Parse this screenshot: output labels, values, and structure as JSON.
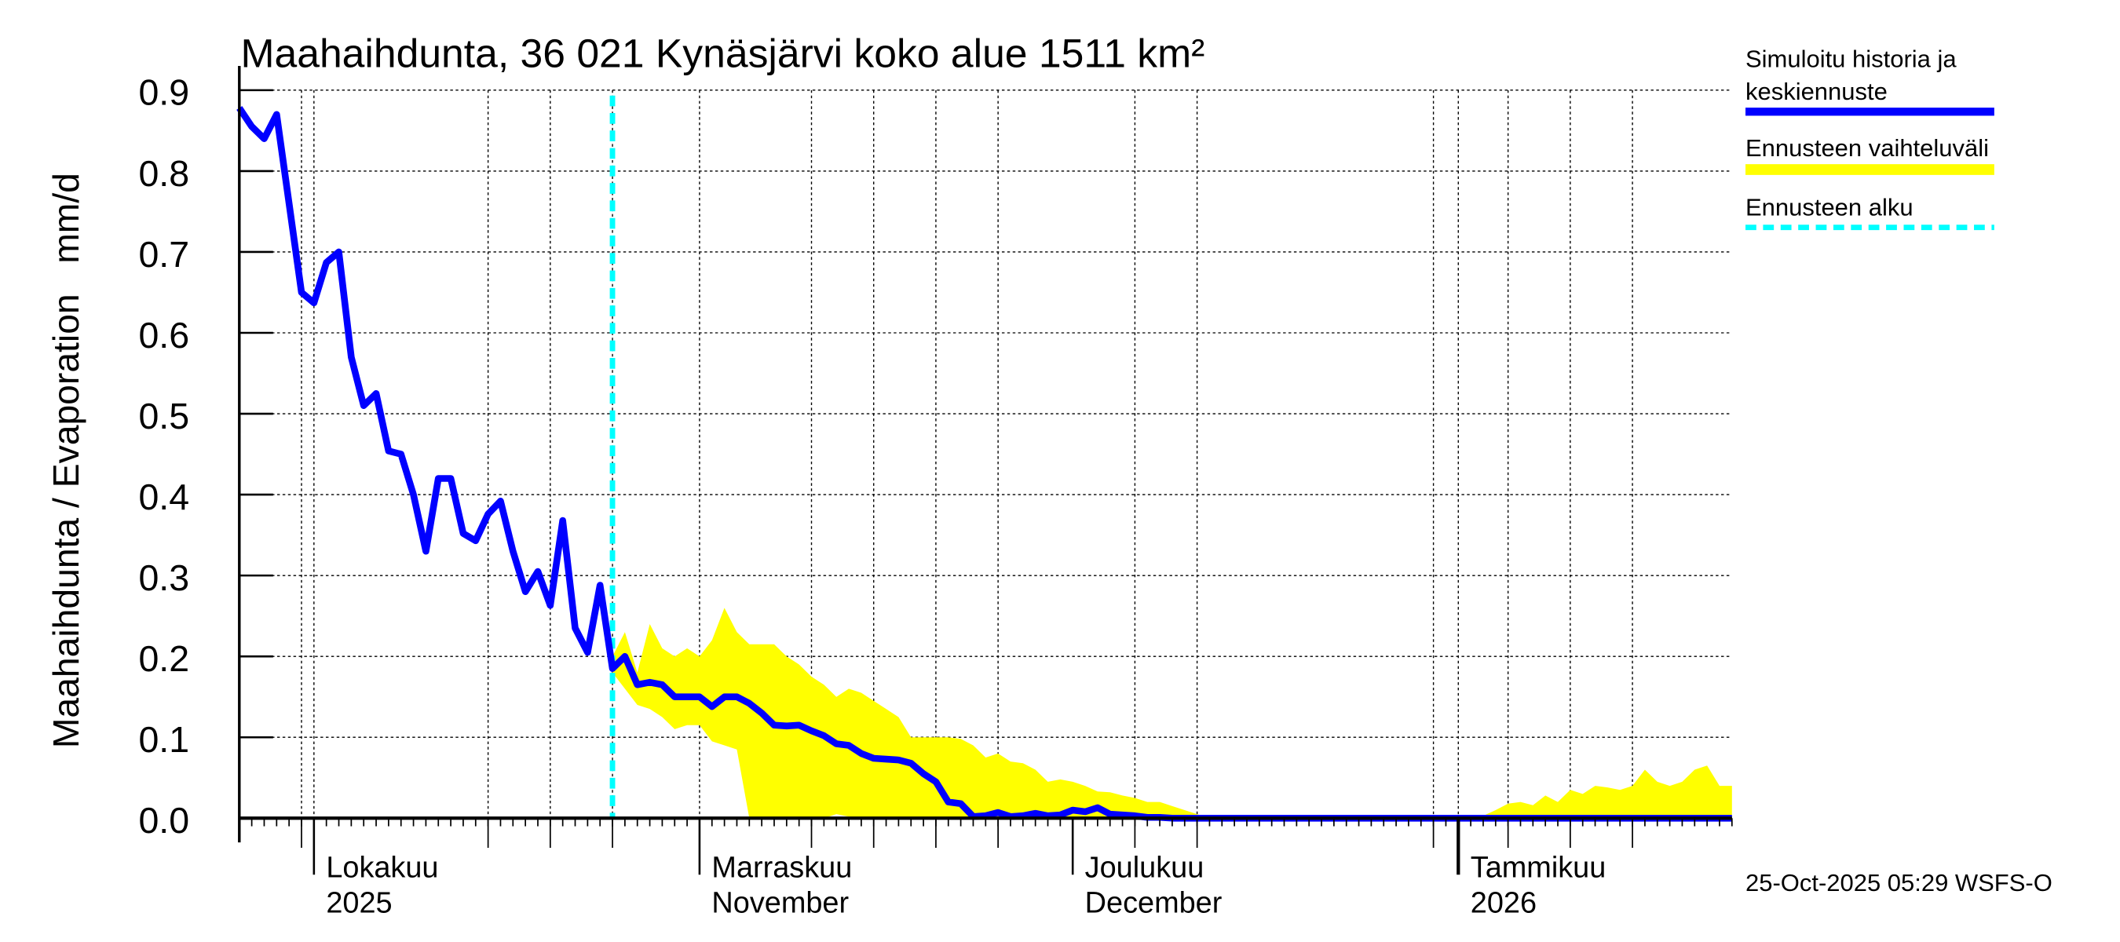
{
  "chart_data": {
    "type": "line",
    "title": "Maahaihdunta, 36 021 Kynäsjärvi koko alue 1511 km²",
    "ylabel": "Maahaihdunta / Evaporation   mm/d",
    "ylim": [
      0,
      0.9
    ],
    "yticks": [
      "0.0",
      "0.1",
      "0.2",
      "0.3",
      "0.4",
      "0.5",
      "0.6",
      "0.7",
      "0.8",
      "0.9"
    ],
    "x_start_date": "2025-09-25",
    "x_end_day": 120,
    "forecast_start_day": 30,
    "month_labels": [
      {
        "day": 6,
        "line1": "Lokakuu",
        "line2": "2025"
      },
      {
        "day": 37,
        "line1": "Marraskuu",
        "line2": "November"
      },
      {
        "day": 67,
        "line1": "Joulukuu",
        "line2": "December"
      },
      {
        "day": 98,
        "line1": "Tammikuu",
        "line2": "2026"
      }
    ],
    "grid_days": [
      5,
      6,
      20,
      25,
      30,
      37,
      46,
      51,
      56,
      61,
      72,
      77,
      96,
      98,
      102,
      107,
      112
    ],
    "series": [
      {
        "name": "Simuloitu historia ja keskiennuste",
        "color": "#0000ff",
        "start_day": 0,
        "values": [
          0.878,
          0.855,
          0.84,
          0.87,
          0.76,
          0.65,
          0.637,
          0.687,
          0.7,
          0.57,
          0.51,
          0.525,
          0.454,
          0.45,
          0.4,
          0.33,
          0.42,
          0.42,
          0.352,
          0.343,
          0.376,
          0.392,
          0.33,
          0.28,
          0.305,
          0.263,
          0.368,
          0.235,
          0.205,
          0.288,
          0.185,
          0.2,
          0.165,
          0.168,
          0.165,
          0.15,
          0.15,
          0.15,
          0.138,
          0.15,
          0.15,
          0.142,
          0.13,
          0.115,
          0.114,
          0.115,
          0.108,
          0.102,
          0.092,
          0.09,
          0.08,
          0.074,
          0.073,
          0.072,
          0.068,
          0.055,
          0.045,
          0.02,
          0.018,
          0.002,
          0.003,
          0.007,
          0.002,
          0.003,
          0.006,
          0.003,
          0.004,
          0.01,
          0.008,
          0.013,
          0.005,
          0.004,
          0.003,
          0.001,
          0.001,
          0,
          0,
          0,
          0,
          0,
          0,
          0,
          0,
          0,
          0,
          0,
          0,
          0,
          0,
          0,
          0,
          0,
          0,
          0,
          0,
          0,
          0,
          0,
          0,
          0,
          0,
          0,
          0,
          0,
          0,
          0,
          0,
          0,
          0,
          0,
          0,
          0,
          0,
          0,
          0,
          0,
          0,
          0,
          0,
          0,
          0
        ]
      },
      {
        "name": "Ennusteen vaihteluväli",
        "color": "#ffff00",
        "start_day": 30,
        "upper": [
          0.2,
          0.23,
          0.18,
          0.24,
          0.21,
          0.2,
          0.21,
          0.2,
          0.22,
          0.26,
          0.23,
          0.215,
          0.215,
          0.215,
          0.2,
          0.19,
          0.175,
          0.165,
          0.15,
          0.16,
          0.155,
          0.145,
          0.135,
          0.125,
          0.1,
          0.1,
          0.1,
          0.1,
          0.098,
          0.09,
          0.075,
          0.08,
          0.07,
          0.068,
          0.06,
          0.045,
          0.048,
          0.045,
          0.04,
          0.033,
          0.032,
          0.028,
          0.025,
          0.02,
          0.02,
          0.015,
          0.01,
          0.005,
          0,
          0,
          0,
          0,
          0,
          0,
          0,
          0,
          0,
          0,
          0,
          0,
          0,
          0,
          0,
          0,
          0,
          0,
          0,
          0,
          0,
          0,
          0.003,
          0.01,
          0.018,
          0.02,
          0.016,
          0.028,
          0.02,
          0.035,
          0.03,
          0.04,
          0.038,
          0.035,
          0.04,
          0.06,
          0.045,
          0.04,
          0.045,
          0.06,
          0.065,
          0.04,
          0.04
        ],
        "lower": [
          0.18,
          0.16,
          0.14,
          0.135,
          0.125,
          0.11,
          0.115,
          0.115,
          0.095,
          0.09,
          0.085,
          0,
          0,
          0,
          0,
          0,
          0,
          0,
          0.005,
          0.002,
          0,
          0,
          0,
          0,
          0,
          0,
          0,
          0,
          0,
          0,
          0,
          0,
          0,
          0,
          0,
          0,
          0,
          0,
          0,
          0,
          0,
          0,
          0,
          0,
          0,
          0,
          0,
          0,
          0,
          0,
          0,
          0,
          0,
          0,
          0,
          0,
          0,
          0,
          0,
          0,
          0,
          0,
          0,
          0,
          0,
          0,
          0,
          0,
          0,
          0,
          0,
          0,
          0,
          0,
          0,
          0,
          0,
          0,
          0,
          0,
          0,
          0,
          0,
          0,
          0,
          0,
          0,
          0,
          0,
          0,
          0
        ]
      },
      {
        "name": "Ennusteen alku",
        "color": "#00ffff"
      }
    ],
    "legend": {
      "placement": "right",
      "items": [
        "Simuloitu historia ja",
        "keskiennuste",
        "Ennusteen vaihteluväli",
        "Ennusteen alku"
      ]
    },
    "timestamp": "25-Oct-2025 05:29 WSFS-O"
  }
}
